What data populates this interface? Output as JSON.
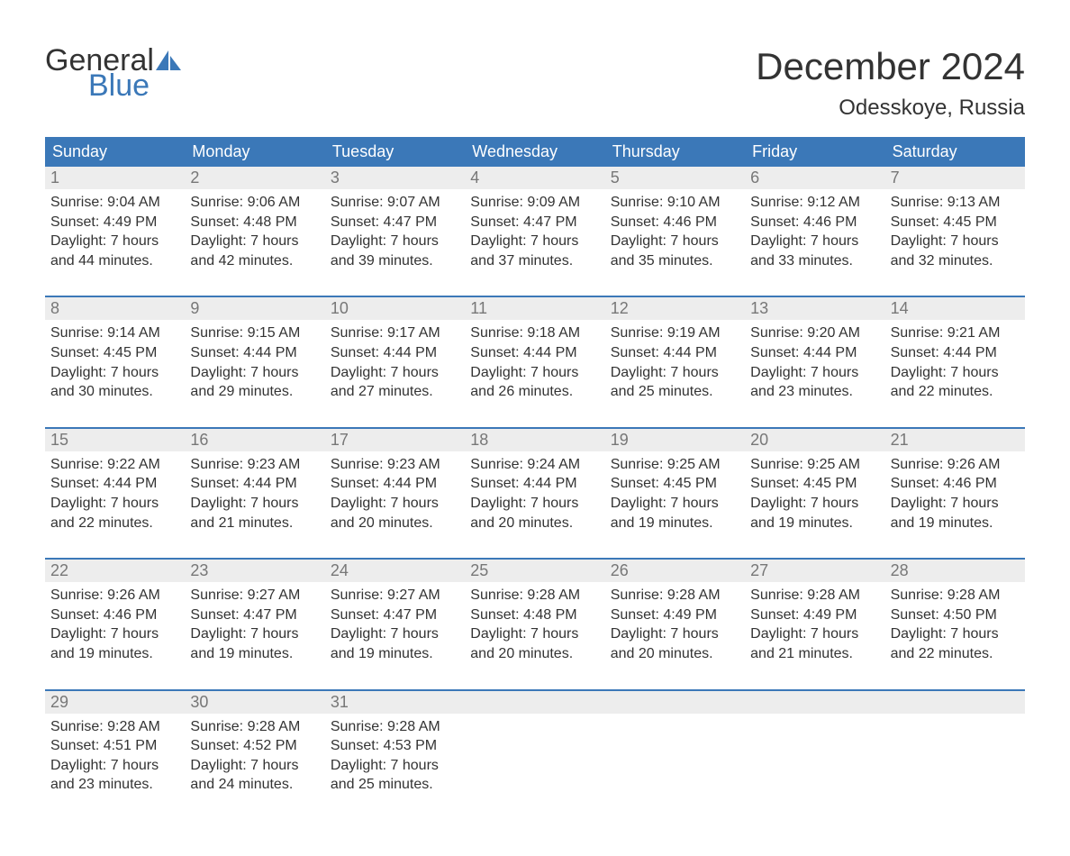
{
  "brand": {
    "word1": "General",
    "word2": "Blue"
  },
  "title": "December 2024",
  "location": "Odesskoye, Russia",
  "colors": {
    "header_bg": "#3b78b8",
    "header_text": "#ffffff",
    "daynum_bg": "#ededed",
    "daynum_text": "#777777",
    "body_text": "#333333",
    "week_border": "#3b78b8",
    "page_bg": "#ffffff",
    "logo_accent": "#3b78b8"
  },
  "days_of_week": [
    "Sunday",
    "Monday",
    "Tuesday",
    "Wednesday",
    "Thursday",
    "Friday",
    "Saturday"
  ],
  "layout": {
    "columns": 7,
    "rows": 5,
    "font_family": "Arial",
    "dow_fontsize": 18,
    "daynum_fontsize": 18,
    "body_fontsize": 16,
    "title_fontsize": 42,
    "location_fontsize": 24
  },
  "weeks": [
    [
      {
        "n": "1",
        "sunrise": "Sunrise: 9:04 AM",
        "sunset": "Sunset: 4:49 PM",
        "d1": "Daylight: 7 hours",
        "d2": "and 44 minutes."
      },
      {
        "n": "2",
        "sunrise": "Sunrise: 9:06 AM",
        "sunset": "Sunset: 4:48 PM",
        "d1": "Daylight: 7 hours",
        "d2": "and 42 minutes."
      },
      {
        "n": "3",
        "sunrise": "Sunrise: 9:07 AM",
        "sunset": "Sunset: 4:47 PM",
        "d1": "Daylight: 7 hours",
        "d2": "and 39 minutes."
      },
      {
        "n": "4",
        "sunrise": "Sunrise: 9:09 AM",
        "sunset": "Sunset: 4:47 PM",
        "d1": "Daylight: 7 hours",
        "d2": "and 37 minutes."
      },
      {
        "n": "5",
        "sunrise": "Sunrise: 9:10 AM",
        "sunset": "Sunset: 4:46 PM",
        "d1": "Daylight: 7 hours",
        "d2": "and 35 minutes."
      },
      {
        "n": "6",
        "sunrise": "Sunrise: 9:12 AM",
        "sunset": "Sunset: 4:46 PM",
        "d1": "Daylight: 7 hours",
        "d2": "and 33 minutes."
      },
      {
        "n": "7",
        "sunrise": "Sunrise: 9:13 AM",
        "sunset": "Sunset: 4:45 PM",
        "d1": "Daylight: 7 hours",
        "d2": "and 32 minutes."
      }
    ],
    [
      {
        "n": "8",
        "sunrise": "Sunrise: 9:14 AM",
        "sunset": "Sunset: 4:45 PM",
        "d1": "Daylight: 7 hours",
        "d2": "and 30 minutes."
      },
      {
        "n": "9",
        "sunrise": "Sunrise: 9:15 AM",
        "sunset": "Sunset: 4:44 PM",
        "d1": "Daylight: 7 hours",
        "d2": "and 29 minutes."
      },
      {
        "n": "10",
        "sunrise": "Sunrise: 9:17 AM",
        "sunset": "Sunset: 4:44 PM",
        "d1": "Daylight: 7 hours",
        "d2": "and 27 minutes."
      },
      {
        "n": "11",
        "sunrise": "Sunrise: 9:18 AM",
        "sunset": "Sunset: 4:44 PM",
        "d1": "Daylight: 7 hours",
        "d2": "and 26 minutes."
      },
      {
        "n": "12",
        "sunrise": "Sunrise: 9:19 AM",
        "sunset": "Sunset: 4:44 PM",
        "d1": "Daylight: 7 hours",
        "d2": "and 25 minutes."
      },
      {
        "n": "13",
        "sunrise": "Sunrise: 9:20 AM",
        "sunset": "Sunset: 4:44 PM",
        "d1": "Daylight: 7 hours",
        "d2": "and 23 minutes."
      },
      {
        "n": "14",
        "sunrise": "Sunrise: 9:21 AM",
        "sunset": "Sunset: 4:44 PM",
        "d1": "Daylight: 7 hours",
        "d2": "and 22 minutes."
      }
    ],
    [
      {
        "n": "15",
        "sunrise": "Sunrise: 9:22 AM",
        "sunset": "Sunset: 4:44 PM",
        "d1": "Daylight: 7 hours",
        "d2": "and 22 minutes."
      },
      {
        "n": "16",
        "sunrise": "Sunrise: 9:23 AM",
        "sunset": "Sunset: 4:44 PM",
        "d1": "Daylight: 7 hours",
        "d2": "and 21 minutes."
      },
      {
        "n": "17",
        "sunrise": "Sunrise: 9:23 AM",
        "sunset": "Sunset: 4:44 PM",
        "d1": "Daylight: 7 hours",
        "d2": "and 20 minutes."
      },
      {
        "n": "18",
        "sunrise": "Sunrise: 9:24 AM",
        "sunset": "Sunset: 4:44 PM",
        "d1": "Daylight: 7 hours",
        "d2": "and 20 minutes."
      },
      {
        "n": "19",
        "sunrise": "Sunrise: 9:25 AM",
        "sunset": "Sunset: 4:45 PM",
        "d1": "Daylight: 7 hours",
        "d2": "and 19 minutes."
      },
      {
        "n": "20",
        "sunrise": "Sunrise: 9:25 AM",
        "sunset": "Sunset: 4:45 PM",
        "d1": "Daylight: 7 hours",
        "d2": "and 19 minutes."
      },
      {
        "n": "21",
        "sunrise": "Sunrise: 9:26 AM",
        "sunset": "Sunset: 4:46 PM",
        "d1": "Daylight: 7 hours",
        "d2": "and 19 minutes."
      }
    ],
    [
      {
        "n": "22",
        "sunrise": "Sunrise: 9:26 AM",
        "sunset": "Sunset: 4:46 PM",
        "d1": "Daylight: 7 hours",
        "d2": "and 19 minutes."
      },
      {
        "n": "23",
        "sunrise": "Sunrise: 9:27 AM",
        "sunset": "Sunset: 4:47 PM",
        "d1": "Daylight: 7 hours",
        "d2": "and 19 minutes."
      },
      {
        "n": "24",
        "sunrise": "Sunrise: 9:27 AM",
        "sunset": "Sunset: 4:47 PM",
        "d1": "Daylight: 7 hours",
        "d2": "and 19 minutes."
      },
      {
        "n": "25",
        "sunrise": "Sunrise: 9:28 AM",
        "sunset": "Sunset: 4:48 PM",
        "d1": "Daylight: 7 hours",
        "d2": "and 20 minutes."
      },
      {
        "n": "26",
        "sunrise": "Sunrise: 9:28 AM",
        "sunset": "Sunset: 4:49 PM",
        "d1": "Daylight: 7 hours",
        "d2": "and 20 minutes."
      },
      {
        "n": "27",
        "sunrise": "Sunrise: 9:28 AM",
        "sunset": "Sunset: 4:49 PM",
        "d1": "Daylight: 7 hours",
        "d2": "and 21 minutes."
      },
      {
        "n": "28",
        "sunrise": "Sunrise: 9:28 AM",
        "sunset": "Sunset: 4:50 PM",
        "d1": "Daylight: 7 hours",
        "d2": "and 22 minutes."
      }
    ],
    [
      {
        "n": "29",
        "sunrise": "Sunrise: 9:28 AM",
        "sunset": "Sunset: 4:51 PM",
        "d1": "Daylight: 7 hours",
        "d2": "and 23 minutes."
      },
      {
        "n": "30",
        "sunrise": "Sunrise: 9:28 AM",
        "sunset": "Sunset: 4:52 PM",
        "d1": "Daylight: 7 hours",
        "d2": "and 24 minutes."
      },
      {
        "n": "31",
        "sunrise": "Sunrise: 9:28 AM",
        "sunset": "Sunset: 4:53 PM",
        "d1": "Daylight: 7 hours",
        "d2": "and 25 minutes."
      },
      null,
      null,
      null,
      null
    ]
  ]
}
